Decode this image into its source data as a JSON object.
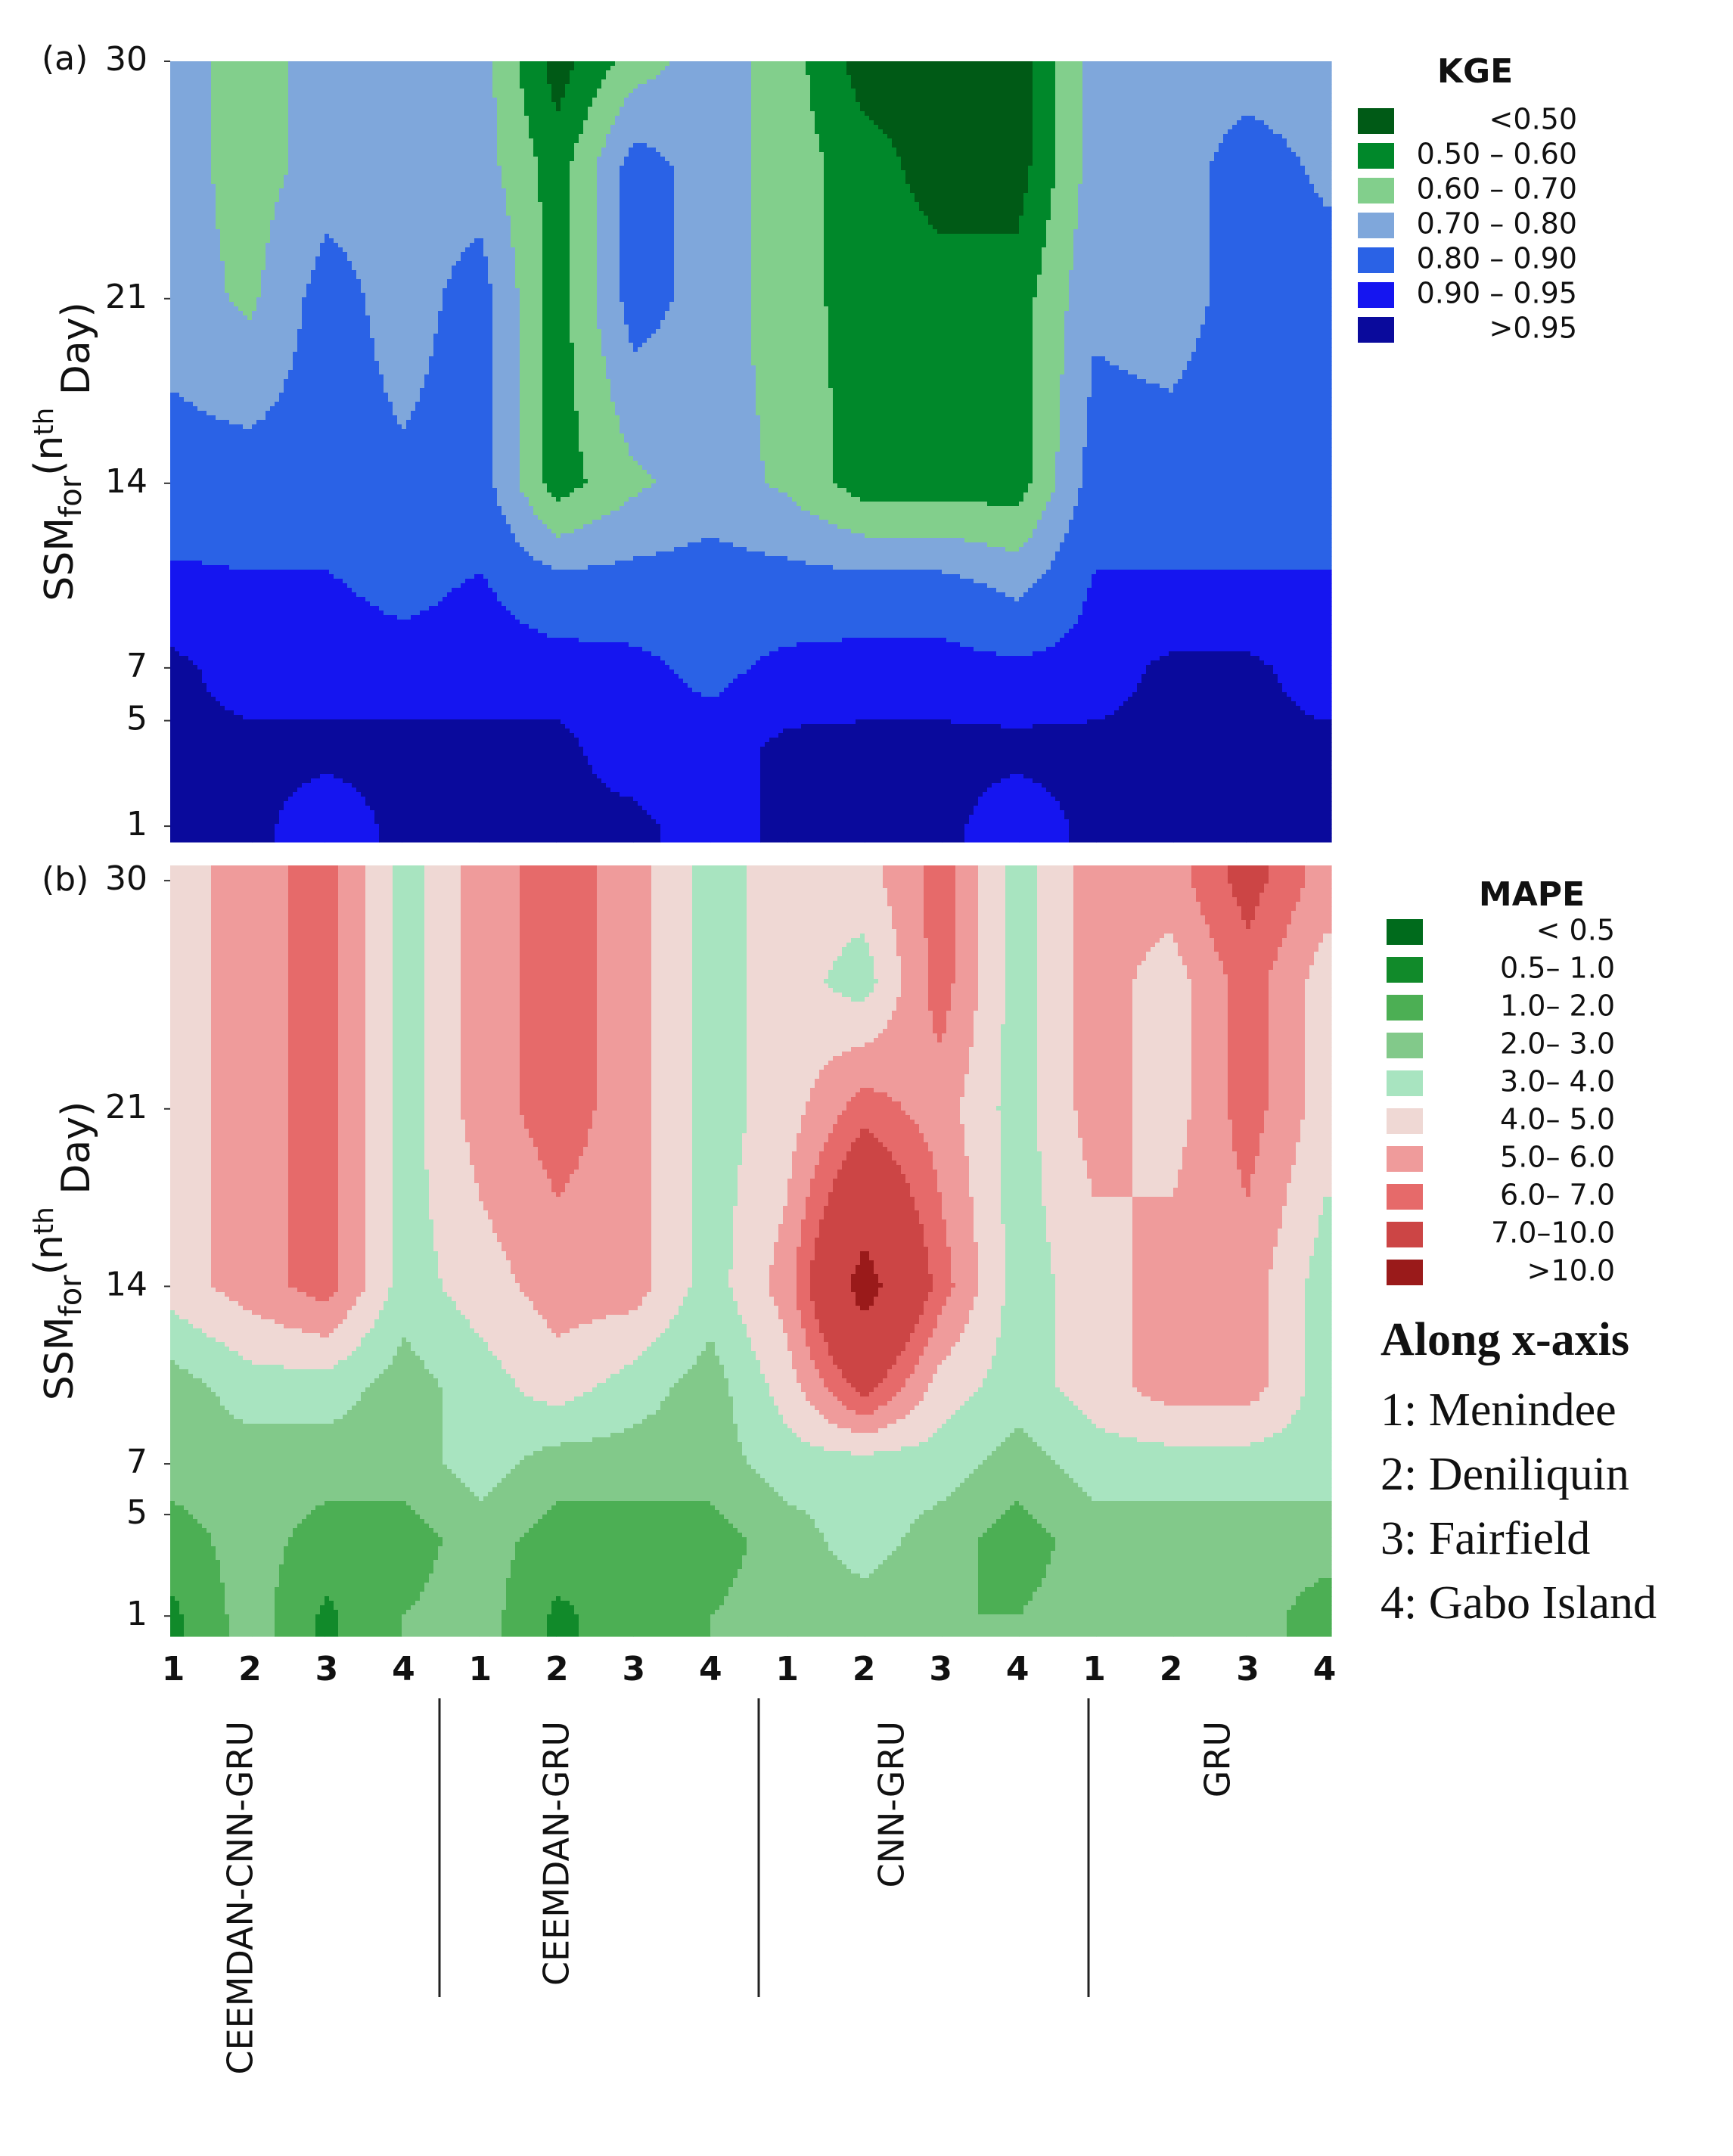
{
  "chart_data": [
    {
      "type": "contour",
      "panel_label": "(a)",
      "legend_title": "KGE",
      "ylabel_parts": [
        "SSM",
        "for",
        "(n",
        "th",
        " Day)"
      ],
      "ylim": [
        0.4,
        30
      ],
      "yticks": [
        1,
        5,
        7,
        14,
        21,
        30
      ],
      "y": [
        1,
        4,
        7,
        10,
        14,
        21,
        26,
        30
      ],
      "z": [
        [
          0.96,
          0.96,
          0.93,
          0.96,
          0.96,
          0.96,
          0.96,
          0.93,
          0.96,
          0.96,
          0.96,
          0.93,
          0.96,
          0.96,
          0.96,
          0.96
        ],
        [
          0.96,
          0.96,
          0.96,
          0.96,
          0.96,
          0.96,
          0.93,
          0.93,
          0.96,
          0.96,
          0.96,
          0.96,
          0.96,
          0.96,
          0.96,
          0.96
        ],
        [
          0.96,
          0.93,
          0.93,
          0.93,
          0.93,
          0.93,
          0.92,
          0.88,
          0.92,
          0.93,
          0.93,
          0.92,
          0.93,
          0.96,
          0.96,
          0.93
        ],
        [
          0.92,
          0.91,
          0.91,
          0.88,
          0.91,
          0.85,
          0.85,
          0.85,
          0.85,
          0.85,
          0.85,
          0.78,
          0.91,
          0.91,
          0.91,
          0.91
        ],
        [
          0.85,
          0.85,
          0.85,
          0.82,
          0.85,
          0.55,
          0.68,
          0.75,
          0.68,
          0.55,
          0.55,
          0.55,
          0.85,
          0.85,
          0.85,
          0.85
        ],
        [
          0.75,
          0.68,
          0.85,
          0.75,
          0.85,
          0.55,
          0.85,
          0.75,
          0.65,
          0.55,
          0.55,
          0.55,
          0.78,
          0.75,
          0.85,
          0.85
        ],
        [
          0.75,
          0.65,
          0.75,
          0.75,
          0.75,
          0.55,
          0.85,
          0.75,
          0.65,
          0.55,
          0.45,
          0.45,
          0.75,
          0.75,
          0.85,
          0.78
        ],
        [
          0.75,
          0.65,
          0.75,
          0.75,
          0.75,
          0.45,
          0.65,
          0.75,
          0.65,
          0.45,
          0.45,
          0.45,
          0.75,
          0.75,
          0.75,
          0.75
        ]
      ],
      "levels": [
        0.5,
        0.6,
        0.7,
        0.8,
        0.9,
        0.95
      ],
      "level_labels": [
        "<0.50",
        "0.50 – 0.60",
        "0.60 – 0.70",
        "0.70 – 0.80",
        "0.80 – 0.90",
        "0.90 – 0.95",
        ">0.95"
      ],
      "colors": [
        "#005a16",
        "#00882a",
        "#82cf8c",
        "#7fa7db",
        "#2a62e6",
        "#1515f0",
        "#0a0a9c"
      ]
    },
    {
      "type": "contour",
      "panel_label": "(b)",
      "legend_title": "MAPE",
      "ylabel_parts": [
        "SSM",
        "for",
        "(n",
        "th",
        " Day)"
      ],
      "ylim": [
        0.2,
        30.6
      ],
      "yticks": [
        1,
        5,
        7,
        14,
        21,
        30
      ],
      "categories": [
        "1",
        "2",
        "3",
        "4",
        "1",
        "2",
        "3",
        "4",
        "1",
        "2",
        "3",
        "4",
        "1",
        "2",
        "3",
        "4"
      ],
      "groups": [
        "CEEMDAN-CNN-GRU",
        "CEEMDAN-GRU",
        "CNN-GRU",
        "GRU"
      ],
      "y": [
        1,
        4,
        7,
        10,
        14,
        21,
        26,
        30
      ],
      "z": [
        [
          0.8,
          2.5,
          0.8,
          2.0,
          2.5,
          0.8,
          1.5,
          2.0,
          2.5,
          2.5,
          2.0,
          2.0,
          2.5,
          2.5,
          2.5,
          1.5
        ],
        [
          1.5,
          2.5,
          1.5,
          1.5,
          2.5,
          1.5,
          1.5,
          1.5,
          2.5,
          3.5,
          2.5,
          1.5,
          2.5,
          2.5,
          2.5,
          2.5
        ],
        [
          2.5,
          2.5,
          2.5,
          2.5,
          3.5,
          2.5,
          2.5,
          2.5,
          3.5,
          3.5,
          3.5,
          2.5,
          3.5,
          3.5,
          3.5,
          3.5
        ],
        [
          2.5,
          3.5,
          3.5,
          2.5,
          3.5,
          4.5,
          3.5,
          2.5,
          4.5,
          7.5,
          4.5,
          3.5,
          4.5,
          5.5,
          5.5,
          3.5
        ],
        [
          4.5,
          5.5,
          6.5,
          3.5,
          4.5,
          5.5,
          5.5,
          3.5,
          5.5,
          11,
          6.5,
          3.5,
          4.5,
          5.5,
          5.5,
          3.5
        ],
        [
          4.5,
          5.5,
          6.5,
          3.5,
          5.5,
          6.5,
          5.5,
          3.5,
          4.5,
          6.5,
          5.5,
          3.5,
          5.5,
          4.5,
          6.5,
          4.5
        ],
        [
          4.5,
          5.5,
          6.5,
          3.5,
          5.5,
          6.5,
          5.5,
          3.5,
          4.5,
          3.5,
          6.5,
          3.5,
          5.5,
          4.5,
          6.5,
          4.5
        ],
        [
          4.5,
          5.5,
          6.5,
          3.5,
          5.5,
          6.5,
          5.5,
          3.5,
          4.5,
          4.5,
          6.5,
          3.5,
          5.5,
          5.5,
          7.5,
          5.5
        ]
      ],
      "levels": [
        0.5,
        1,
        2,
        3,
        4,
        5,
        6,
        7,
        10
      ],
      "level_labels": [
        "< 0.5",
        "0.5– 1.0",
        "1.0– 2.0",
        "2.0– 3.0",
        "3.0– 4.0",
        "4.0– 5.0",
        "5.0– 6.0",
        "6.0– 7.0",
        "7.0–10.0",
        ">10.0"
      ],
      "colors": [
        "#006b1c",
        "#118a2a",
        "#4caf54",
        "#82c98a",
        "#a8e4c0",
        "#efd8d4",
        "#ef9b9b",
        "#e66a6a",
        "#cc4545",
        "#9a1a1a"
      ],
      "annotation_title": "Along x-axis",
      "annotations": [
        "1: Menindee",
        "2: Deniliquin",
        "3: Fairfield",
        "4: Gabo Island"
      ]
    }
  ]
}
